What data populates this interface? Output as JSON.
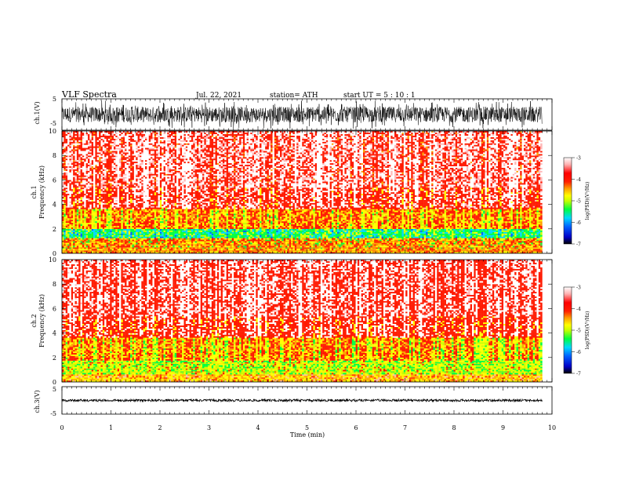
{
  "header": {
    "title": "VLF  Spectra",
    "date": "Jul.  22, 2021",
    "station": "station= ATH",
    "start": "start  UT  =     5  : 10 : 1"
  },
  "chart_data": [
    {
      "type": "line",
      "panel": "ch1-waveform",
      "ylabel": "ch.1(V)",
      "ylim": [
        -5,
        5
      ],
      "yticks": [
        "5",
        "-5"
      ],
      "xlim": [
        0,
        10
      ],
      "description_amplitude_range": [
        -4.5,
        4.5
      ],
      "color": "#000000"
    },
    {
      "type": "heatmap",
      "panel": "ch1-spectrogram",
      "ylabel": [
        "ch.1",
        "Frequency  (kHz)"
      ],
      "ylim": [
        0,
        10
      ],
      "yticks": [
        "0",
        "2",
        "4",
        "6",
        "8",
        "10"
      ],
      "xlim": [
        0,
        9.8
      ],
      "colorbar": {
        "label": "log(PSD)(V²/Hz)",
        "range": [
          -7,
          -3
        ],
        "ticks": [
          "-3",
          "-4",
          "-5",
          "-6",
          "-7"
        ],
        "colors": [
          "#000000",
          "#0000c8",
          "#0060ff",
          "#00d8ff",
          "#00ff40",
          "#c8ff00",
          "#ffff00",
          "#ffa000",
          "#ff2000",
          "#ff0000",
          "#ffb0b0",
          "#ffffff"
        ]
      },
      "bands_khz": [
        {
          "range": [
            0,
            0.4
          ],
          "dominant": "yellow-orange"
        },
        {
          "range": [
            0.4,
            1.2
          ],
          "dominant": "yellow-red"
        },
        {
          "range": [
            1.2,
            2.0
          ],
          "dominant": "green-cyan"
        },
        {
          "range": [
            2.0,
            3.6
          ],
          "dominant": "yellow"
        },
        {
          "range": [
            3.6,
            10
          ],
          "dominant": "red-white"
        }
      ]
    },
    {
      "type": "heatmap",
      "panel": "ch2-spectrogram",
      "ylabel": [
        "ch.2",
        "Frequency  (kHz)"
      ],
      "ylim": [
        0,
        10
      ],
      "yticks": [
        "0",
        "2",
        "4",
        "6",
        "8",
        "10"
      ],
      "xlim": [
        0,
        9.8
      ],
      "colorbar": {
        "label": "log(PSD)(V²/Hz)",
        "range": [
          -7,
          -3
        ],
        "ticks": [
          "-3",
          "-4",
          "-5",
          "-6",
          "-7"
        ],
        "colors": [
          "#000000",
          "#0000c8",
          "#0060ff",
          "#00d8ff",
          "#00ff40",
          "#c8ff00",
          "#ffff00",
          "#ffa000",
          "#ff2000",
          "#ff0000",
          "#ffb0b0",
          "#ffffff"
        ]
      },
      "bands_khz": [
        {
          "range": [
            0,
            0.6
          ],
          "dominant": "yellow-orange"
        },
        {
          "range": [
            0.6,
            1.8
          ],
          "dominant": "green-yellow"
        },
        {
          "range": [
            1.8,
            3.6
          ],
          "dominant": "yellow"
        },
        {
          "range": [
            3.6,
            10
          ],
          "dominant": "red-white"
        }
      ]
    },
    {
      "type": "line",
      "panel": "ch3-waveform",
      "ylabel": "ch.3(V)",
      "ylim": [
        -5,
        5
      ],
      "yticks": [
        "5",
        "-5"
      ],
      "xlim": [
        0,
        9.8
      ],
      "constant_level": 0,
      "color": "#000000"
    }
  ],
  "xaxis": {
    "label": "Time  (min)",
    "ticks": [
      "0",
      "1",
      "2",
      "3",
      "4",
      "5",
      "6",
      "7",
      "8",
      "9",
      "10"
    ],
    "range": [
      0,
      10
    ]
  }
}
